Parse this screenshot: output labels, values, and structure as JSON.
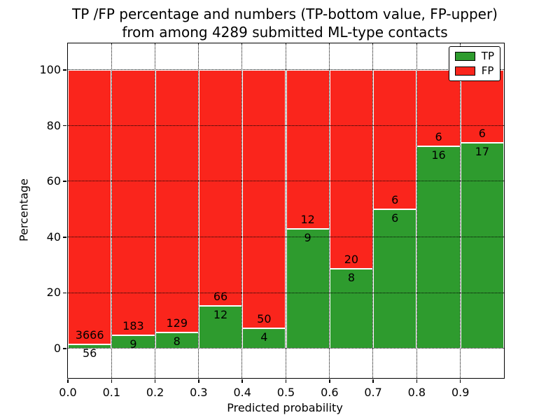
{
  "figure": {
    "title_line1": "TP /FP percentage and numbers (TP-bottom value, FP-upper)",
    "title_line2": "from among 4289 submitted ML-type contacts"
  },
  "chart_data": {
    "type": "bar",
    "stacked": true,
    "title": "TP /FP percentage and numbers (TP-bottom value, FP-upper)\nfrom among 4289 submitted ML-type contacts",
    "xlabel": "Predicted probability",
    "ylabel": "Percentage",
    "total_contacts": 4289,
    "xlim": [
      0.0,
      1.0
    ],
    "ylim": [
      -11,
      110
    ],
    "grid": true,
    "grid_style": "dotted",
    "legend_position": "upper right",
    "bin_edges": [
      0.0,
      0.1,
      0.2,
      0.3,
      0.4,
      0.5,
      0.6,
      0.7,
      0.8,
      0.9,
      1.0
    ],
    "x_tick_labels": [
      "0.0",
      "0.1",
      "0.2",
      "0.3",
      "0.4",
      "0.5",
      "0.6",
      "0.7",
      "0.8",
      "0.9"
    ],
    "y_ticks": [
      0,
      20,
      40,
      60,
      80,
      100
    ],
    "series": [
      {
        "name": "TP",
        "color": "#2e9b2e",
        "counts": [
          56,
          9,
          8,
          12,
          4,
          9,
          8,
          6,
          16,
          17
        ],
        "pct": [
          1.5,
          4.69,
          5.84,
          15.38,
          7.41,
          42.86,
          28.57,
          50.0,
          72.73,
          73.91
        ]
      },
      {
        "name": "FP",
        "color": "#fa251c",
        "counts": [
          3666,
          183,
          129,
          66,
          50,
          12,
          20,
          6,
          6,
          6
        ],
        "pct": [
          98.5,
          95.31,
          94.16,
          84.62,
          92.59,
          57.14,
          71.43,
          50.0,
          27.27,
          26.09
        ]
      }
    ]
  }
}
